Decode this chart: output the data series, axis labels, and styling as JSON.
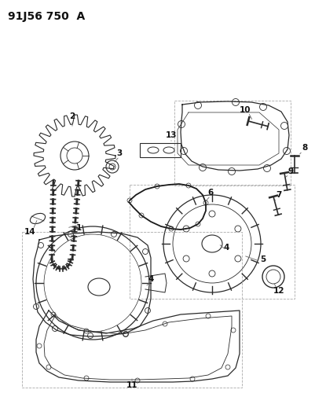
{
  "title": "91J56 750  A",
  "background_color": "#ffffff",
  "title_fontsize": 10,
  "title_fontweight": "bold",
  "fig_width": 4.02,
  "fig_height": 5.33,
  "dpi": 100,
  "line_color": "#2a2a2a",
  "light_line": "#555555",
  "dash_color": "#aaaaaa",
  "label_fontsize": 7.5
}
